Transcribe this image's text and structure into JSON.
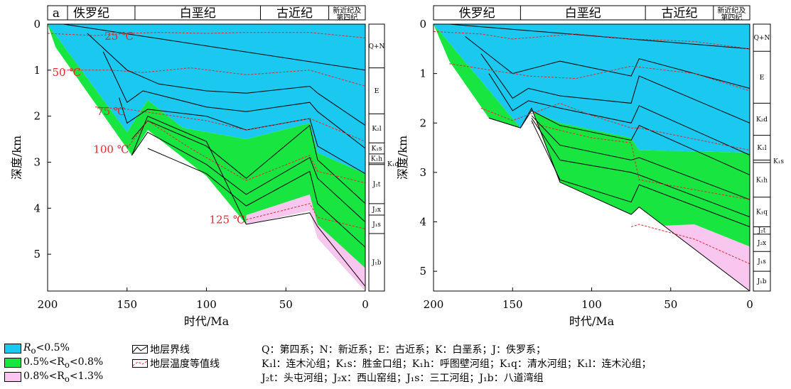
{
  "colors": {
    "immature": "#1ac8f0",
    "low_mature": "#19e540",
    "mature": "#f9c6ef",
    "isotherm": "#e0282f"
  },
  "chart_data": [
    {
      "type": "area",
      "panel_label": "a",
      "xlabel": "时代/Ma",
      "ylabel": "深度/km",
      "xlim": [
        200,
        0
      ],
      "ylim": [
        0,
        5.8
      ],
      "xticks": [
        200,
        150,
        100,
        50,
        0
      ],
      "yticks": [
        0,
        1,
        2,
        3,
        4,
        5
      ],
      "eras": [
        {
          "label": "佚罗纪",
          "from": 200,
          "to": 145
        },
        {
          "label": "白垩纪",
          "from": 145,
          "to": 66
        },
        {
          "label": "古近纪",
          "from": 66,
          "to": 23
        },
        {
          "label": "新近纪及第四纪",
          "from": 23,
          "to": 0
        }
      ],
      "strata_column": [
        {
          "label": "Q+N",
          "top": 0,
          "bottom": 0.95
        },
        {
          "label": "E",
          "top": 0.95,
          "bottom": 1.95
        },
        {
          "label": "K₂l",
          "top": 1.95,
          "bottom": 2.58
        },
        {
          "label": "K₁s",
          "top": 2.58,
          "bottom": 2.82
        },
        {
          "label": "K₁h",
          "top": 2.82,
          "bottom": 3.02
        },
        {
          "label": "K₁q",
          "top": 3.02,
          "bottom": 3.05
        },
        {
          "label": "J₂t",
          "top": 3.05,
          "bottom": 3.9
        },
        {
          "label": "J₂x",
          "top": 3.9,
          "bottom": 4.15
        },
        {
          "label": "J₁s",
          "top": 4.15,
          "bottom": 4.55
        },
        {
          "label": "J₁b",
          "top": 4.55,
          "bottom": 5.8
        }
      ],
      "horizons": [
        {
          "x": [
            200,
            0
          ],
          "y": [
            0,
            0
          ]
        },
        {
          "x": [
            190,
            0
          ],
          "y": [
            0,
            1.0
          ]
        },
        {
          "x": [
            175,
            150,
            130,
            100,
            75,
            35,
            30,
            0
          ],
          "y": [
            0.2,
            1.0,
            1.3,
            1.45,
            1.5,
            1.35,
            1.5,
            2.2
          ]
        },
        {
          "x": [
            165,
            150,
            140,
            100,
            75,
            35,
            30,
            0
          ],
          "y": [
            0.6,
            1.7,
            1.45,
            1.8,
            1.9,
            1.7,
            1.9,
            2.7
          ]
        },
        {
          "x": [
            155,
            150,
            137,
            100,
            75,
            35,
            30,
            0
          ],
          "y": [
            1.6,
            2.15,
            1.85,
            2.0,
            2.3,
            2.05,
            2.65,
            3.25
          ]
        },
        {
          "x": [
            147,
            137,
            100,
            75,
            35,
            30,
            0
          ],
          "y": [
            2.5,
            2.1,
            2.65,
            3.35,
            2.2,
            2.95,
            3.9
          ]
        },
        {
          "x": [
            147,
            137,
            100,
            75,
            35,
            30,
            0
          ],
          "y": [
            2.85,
            2.35,
            3.05,
            3.7,
            2.9,
            3.35,
            4.3
          ]
        },
        {
          "x": [
            137,
            100,
            75,
            35,
            30,
            0
          ],
          "y": [
            2.7,
            3.25,
            3.95,
            3.2,
            3.9,
            4.85
          ]
        },
        {
          "x": [
            147,
            137,
            100,
            75,
            35,
            30,
            0
          ],
          "y": [
            2.85,
            2.0,
            2.55,
            4.35,
            4.1,
            4.4,
            5.7
          ]
        }
      ],
      "isotherms": [
        {
          "label": "25 ℃",
          "x": [
            200,
            170,
            150,
            130,
            100,
            75,
            35,
            0
          ],
          "y": [
            0.2,
            0.25,
            0.2,
            0.18,
            0.2,
            0.18,
            0.18,
            0.3
          ]
        },
        {
          "label": "50 ℃",
          "x": [
            190,
            160,
            140,
            110,
            75,
            35,
            0
          ],
          "y": [
            1.0,
            1.0,
            1.05,
            0.95,
            1.1,
            1.0,
            1.35
          ]
        },
        {
          "label": "75 ℃",
          "x": [
            170,
            150,
            130,
            100,
            75,
            35,
            0
          ],
          "y": [
            1.8,
            1.85,
            1.95,
            2.1,
            2.3,
            2.05,
            2.55
          ]
        },
        {
          "label": "100 ℃",
          "x": [
            150,
            137,
            110,
            75,
            35,
            30,
            0
          ],
          "y": [
            2.7,
            2.1,
            2.7,
            3.4,
            2.85,
            3.2,
            3.45
          ]
        },
        {
          "label": "125 ℃",
          "x": [
            75,
            35,
            30,
            0
          ],
          "y": [
            4.25,
            3.9,
            4.2,
            4.45
          ]
        }
      ],
      "zone_boundaries": {
        "immature_bottom": {
          "x": [
            200,
            150,
            137,
            115,
            75,
            35,
            30,
            0
          ],
          "y": [
            0,
            2.35,
            1.65,
            2.25,
            2.5,
            2.15,
            2.8,
            3.25
          ]
        },
        "low_mature_bottom": {
          "x": [
            75,
            35,
            30,
            0
          ],
          "y": [
            4.15,
            3.7,
            4.35,
            5.3
          ]
        },
        "base": {
          "x": [
            200,
            195,
            147,
            137,
            100,
            75,
            35,
            30,
            0
          ],
          "y": [
            0,
            0.5,
            2.85,
            2.3,
            3.3,
            4.35,
            4.05,
            4.65,
            5.8
          ]
        }
      },
      "isotherm_labels": [
        "25 ℃",
        "50 ℃",
        "75 ℃",
        "100 ℃",
        "125 ℃"
      ]
    },
    {
      "type": "area",
      "panel_label": "",
      "xlabel": "时代/Ma",
      "ylabel": "深度/km",
      "xlim": [
        200,
        0
      ],
      "ylim": [
        0,
        5.4
      ],
      "xticks": [
        200,
        150,
        100,
        50,
        0
      ],
      "yticks": [
        0,
        1,
        2,
        3,
        4,
        5
      ],
      "eras": [
        {
          "label": "佚罗纪",
          "from": 200,
          "to": 145
        },
        {
          "label": "白垩纪",
          "from": 145,
          "to": 66
        },
        {
          "label": "古近纪",
          "from": 66,
          "to": 23
        },
        {
          "label": "新近纪及第四纪",
          "from": 23,
          "to": 0
        }
      ],
      "strata_column": [
        {
          "label": "Q+N",
          "top": 0,
          "bottom": 0.55
        },
        {
          "label": "E",
          "top": 0.55,
          "bottom": 1.6
        },
        {
          "label": "K₂d",
          "top": 1.6,
          "bottom": 2.25
        },
        {
          "label": "K₁l",
          "top": 2.25,
          "bottom": 2.75
        },
        {
          "label": "K₁s",
          "top": 2.75,
          "bottom": 2.8
        },
        {
          "label": "K₁h",
          "top": 2.8,
          "bottom": 3.5
        },
        {
          "label": "K₁q",
          "top": 3.5,
          "bottom": 4.1
        },
        {
          "label": "J₂t",
          "top": 4.1,
          "bottom": 4.25
        },
        {
          "label": "J₂x",
          "top": 4.25,
          "bottom": 4.6
        },
        {
          "label": "J₁s",
          "top": 4.6,
          "bottom": 5.0
        },
        {
          "label": "J₁b",
          "top": 5.0,
          "bottom": 5.4
        }
      ],
      "horizons": [
        {
          "x": [
            200,
            0
          ],
          "y": [
            0,
            0
          ]
        },
        {
          "x": [
            190,
            0
          ],
          "y": [
            0,
            0.5
          ]
        },
        {
          "x": [
            180,
            150,
            120,
            75,
            70,
            0
          ],
          "y": [
            0.25,
            1.0,
            0.75,
            1.05,
            0.7,
            1.3
          ]
        },
        {
          "x": [
            170,
            150,
            140,
            120,
            75,
            70,
            0
          ],
          "y": [
            0.6,
            1.5,
            1.3,
            1.45,
            1.6,
            1.05,
            2.0
          ]
        },
        {
          "x": [
            165,
            150,
            140,
            120,
            75,
            70,
            0
          ],
          "y": [
            1.0,
            1.75,
            1.55,
            1.7,
            2.0,
            1.65,
            2.65
          ]
        },
        {
          "x": [
            165,
            145,
            138,
            120,
            75,
            70,
            0
          ],
          "y": [
            1.9,
            2.1,
            1.75,
            2.05,
            2.35,
            2.05,
            3.05
          ]
        },
        {
          "x": [
            138,
            120,
            75,
            70,
            0
          ],
          "y": [
            1.85,
            2.45,
            2.75,
            2.7,
            3.55
          ]
        },
        {
          "x": [
            138,
            120,
            75,
            70,
            0
          ],
          "y": [
            1.9,
            2.75,
            3.0,
            3.05,
            3.9
          ]
        },
        {
          "x": [
            138,
            120,
            75,
            70,
            0
          ],
          "y": [
            1.95,
            3.15,
            3.6,
            3.25,
            4.1
          ]
        },
        {
          "x": [
            165,
            145,
            138,
            120,
            75,
            70,
            0
          ],
          "y": [
            1.9,
            2.1,
            1.7,
            3.2,
            3.85,
            3.7,
            5.4
          ]
        }
      ],
      "isotherms": [
        {
          "label": "",
          "x": [
            200,
            170,
            150,
            110,
            75,
            35,
            0
          ],
          "y": [
            0.15,
            0.2,
            0.3,
            0.2,
            0.3,
            0.35,
            0.5
          ]
        },
        {
          "label": "",
          "x": [
            190,
            160,
            140,
            110,
            75,
            35,
            0
          ],
          "y": [
            0.8,
            0.95,
            1.05,
            1.1,
            0.85,
            1.0,
            1.35
          ]
        },
        {
          "label": "",
          "x": [
            170,
            150,
            120,
            100,
            75,
            70,
            0
          ],
          "y": [
            1.7,
            1.95,
            1.6,
            1.85,
            2.1,
            2.1,
            2.55
          ]
        },
        {
          "label": "",
          "x": [
            138,
            120,
            100,
            75,
            70,
            0
          ],
          "y": [
            2.0,
            2.15,
            2.3,
            2.4,
            3.15,
            3.55
          ]
        },
        {
          "label": "",
          "x": [
            75,
            70,
            35,
            0
          ],
          "y": [
            4.1,
            4.05,
            4.35,
            4.85
          ]
        }
      ],
      "zone_boundaries": {
        "immature_bottom": {
          "x": [
            200,
            145,
            138,
            120,
            75,
            70,
            0
          ],
          "y": [
            0,
            2.1,
            1.75,
            2.0,
            2.3,
            2.55,
            2.6
          ]
        },
        "low_mature_bottom": {
          "x": [
            75,
            70,
            35,
            0
          ],
          "y": [
            4.1,
            4.1,
            4.05,
            4.5
          ]
        },
        "base": {
          "x": [
            200,
            190,
            165,
            145,
            138,
            120,
            75,
            70,
            0
          ],
          "y": [
            0,
            0.75,
            1.9,
            2.1,
            1.7,
            3.2,
            3.85,
            3.7,
            5.4
          ]
        }
      },
      "isotherm_labels": []
    }
  ],
  "legend": {
    "immature": {
      "pre": "R",
      "sub": "o",
      "post": "<0.5%"
    },
    "low_mature": {
      "pre": "0.5%<R",
      "sub": "o",
      "post": "<0.8%"
    },
    "mature": {
      "pre": "0.8%<R",
      "sub": "o",
      "post": "<1.3%"
    },
    "horizon_line": "地层界线",
    "isotherm_line": "地层温度等值线"
  },
  "abbreviations": [
    "Q：第四系；N：新近系；E：古近系；K：白垩系；J：佚罗系；",
    "K₁l：连木沁组；K₁s：胜金口组；K₁h：呼图壁河组；K₁q：清水河组；K₁l：连木沁组；",
    "J₂t：头屯河组；J₂x：西山窑组；J₁s：三工河组；J₁b：八道湾组"
  ]
}
